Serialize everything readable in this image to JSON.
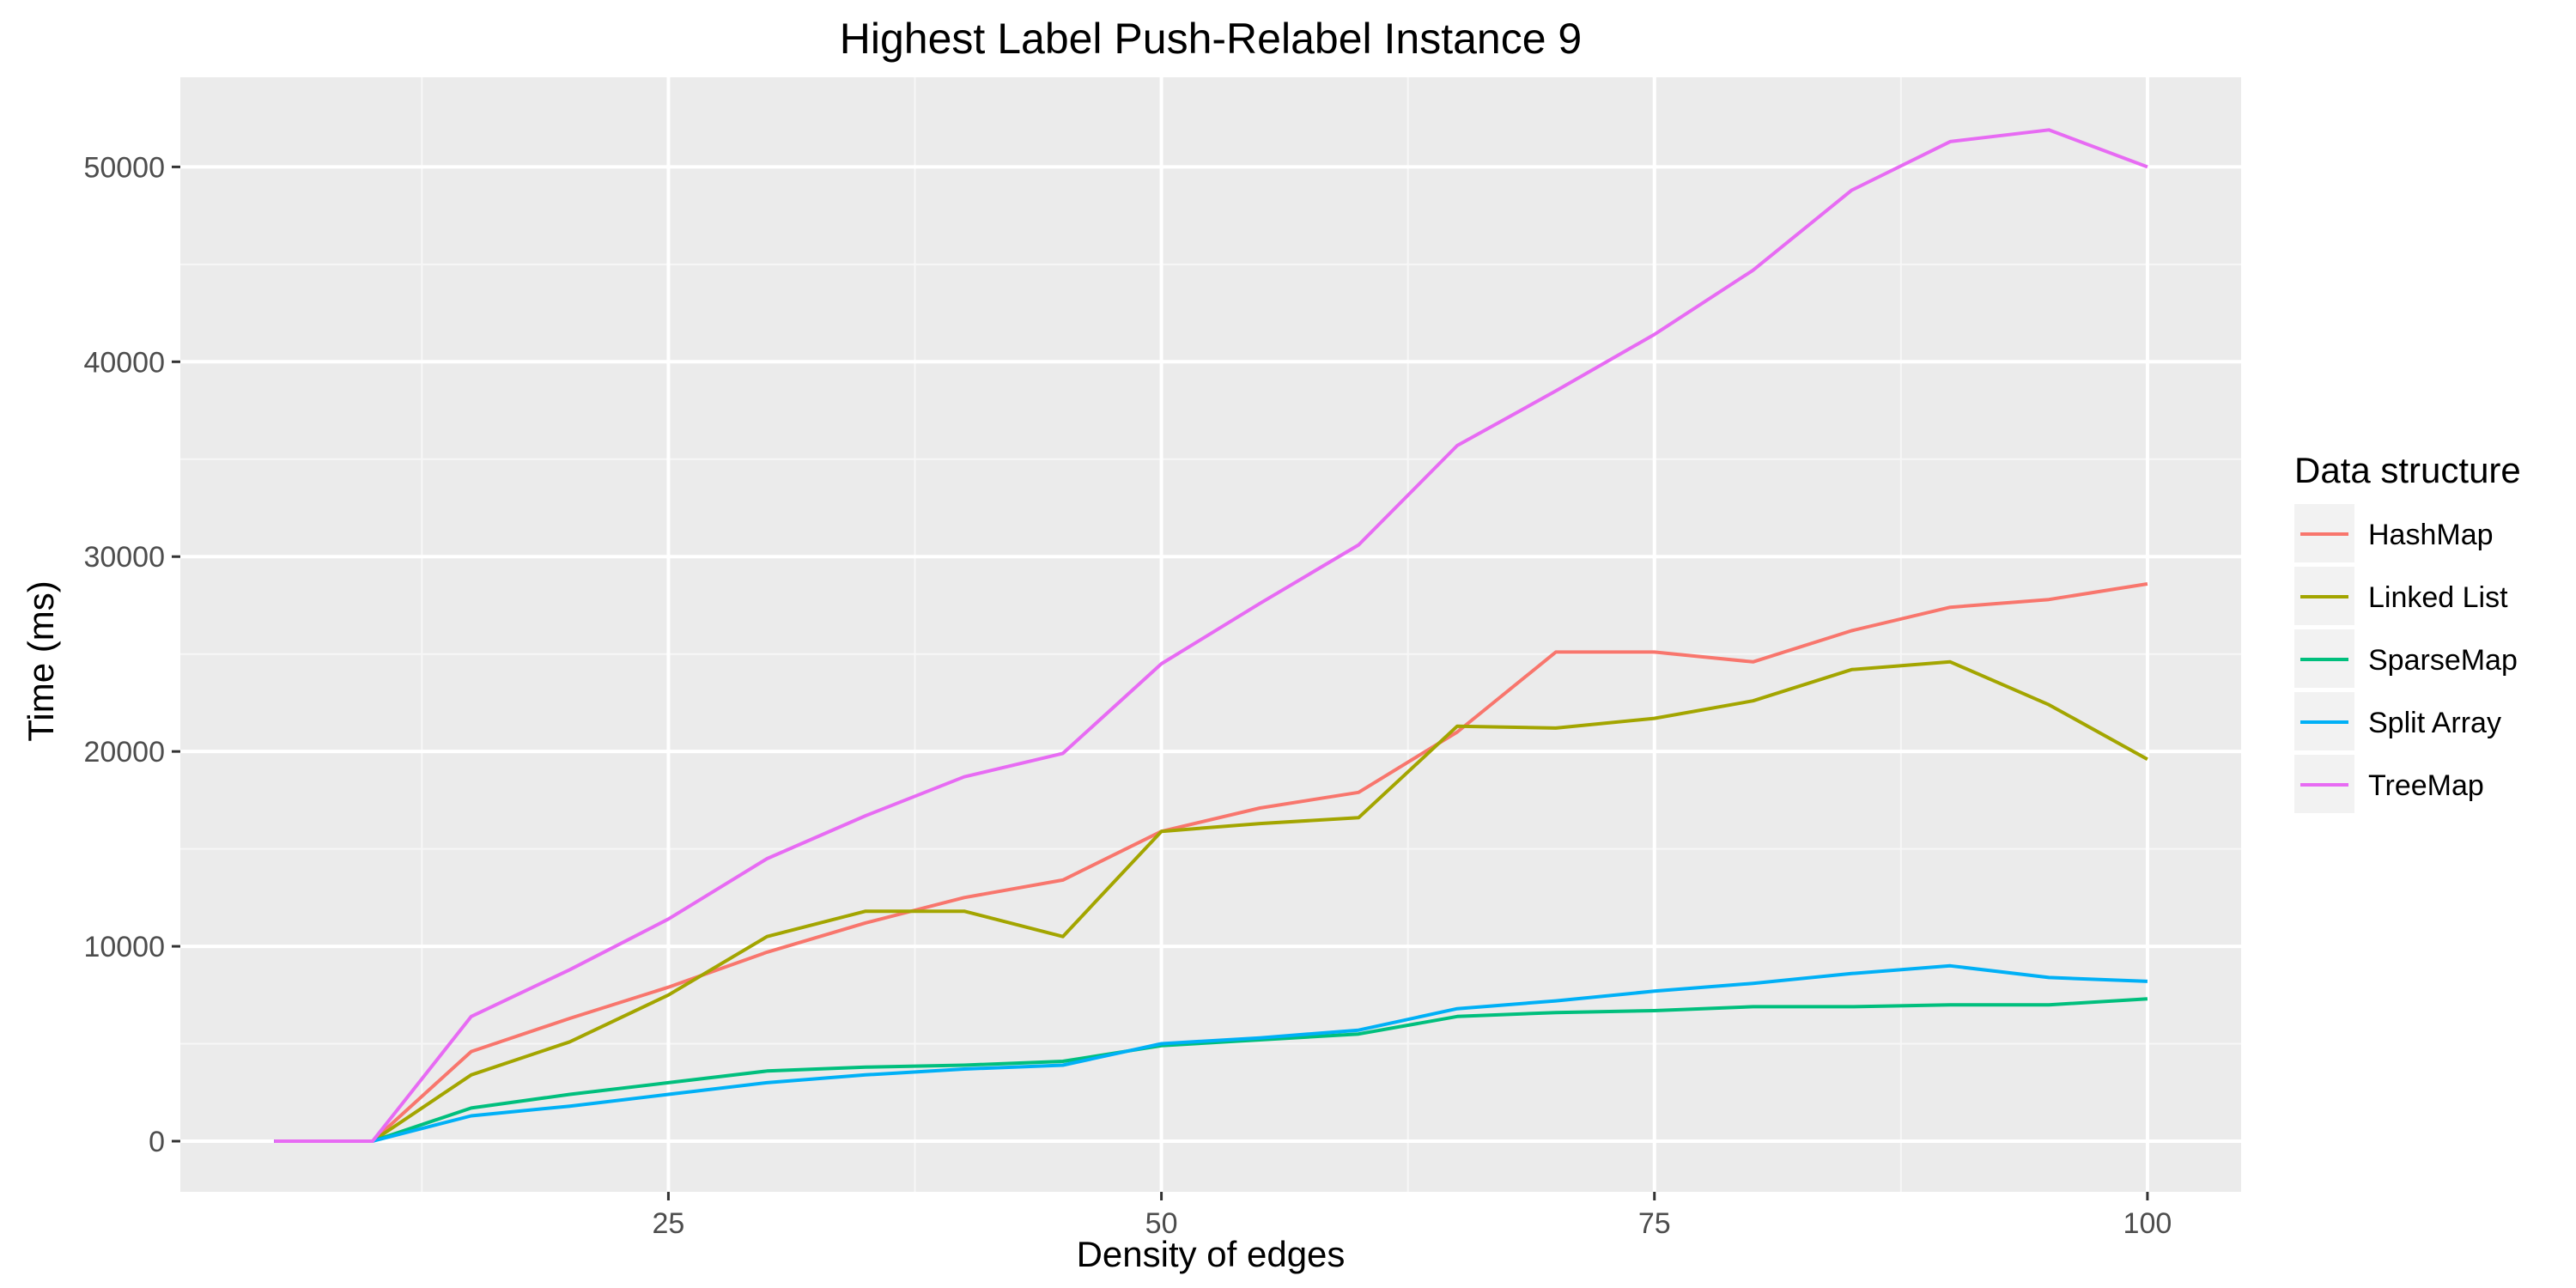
{
  "chart_data": {
    "type": "line",
    "title": "Highest Label Push-Relabel Instance 9",
    "xlabel": "Density of edges",
    "ylabel": "Time (ms)",
    "xlim": [
      0.25,
      104.75
    ],
    "ylim": [
      -2600,
      54600
    ],
    "x_ticks": [
      25,
      50,
      75,
      100
    ],
    "y_ticks": [
      0,
      10000,
      20000,
      30000,
      40000,
      50000
    ],
    "x_tick_labels": [
      "25",
      "50",
      "75",
      "100"
    ],
    "y_tick_labels": [
      "0",
      "10000",
      "20000",
      "30000",
      "40000",
      "50000"
    ],
    "grid": true,
    "legend_position": "right",
    "legend_title": "Data structure",
    "x": [
      5,
      10,
      15,
      20,
      25,
      30,
      35,
      40,
      45,
      50,
      55,
      60,
      65,
      70,
      75,
      80,
      85,
      90,
      95,
      100
    ],
    "series": [
      {
        "name": "HashMap",
        "color": "#F8766D",
        "values": [
          0,
          0,
          4600,
          6300,
          7900,
          9700,
          11200,
          12500,
          13400,
          15900,
          17100,
          17900,
          21000,
          25100,
          25100,
          24600,
          26200,
          27400,
          27800,
          28600
        ]
      },
      {
        "name": "Linked List",
        "color": "#A3A500",
        "values": [
          0,
          0,
          3400,
          5100,
          7500,
          10500,
          11800,
          11800,
          10500,
          15900,
          16300,
          16600,
          21300,
          21200,
          21700,
          22600,
          24200,
          24600,
          22400,
          19600
        ]
      },
      {
        "name": "SparseMap",
        "color": "#00BF7D",
        "values": [
          0,
          0,
          1700,
          2400,
          3000,
          3600,
          3800,
          3900,
          4100,
          4900,
          5200,
          5500,
          6400,
          6600,
          6700,
          6900,
          6900,
          7000,
          7000,
          7300
        ]
      },
      {
        "name": "Split Array",
        "color": "#00B0F6",
        "values": [
          0,
          0,
          1300,
          1800,
          2400,
          3000,
          3400,
          3700,
          3900,
          5000,
          5300,
          5700,
          6800,
          7200,
          7700,
          8100,
          8600,
          9000,
          8400,
          8200
        ]
      },
      {
        "name": "TreeMap",
        "color": "#E76BF3",
        "values": [
          0,
          0,
          6400,
          8800,
          11400,
          14500,
          16700,
          18700,
          19900,
          24500,
          27600,
          30600,
          35700,
          38500,
          41400,
          44700,
          48800,
          51300,
          51900,
          50000
        ]
      }
    ]
  }
}
